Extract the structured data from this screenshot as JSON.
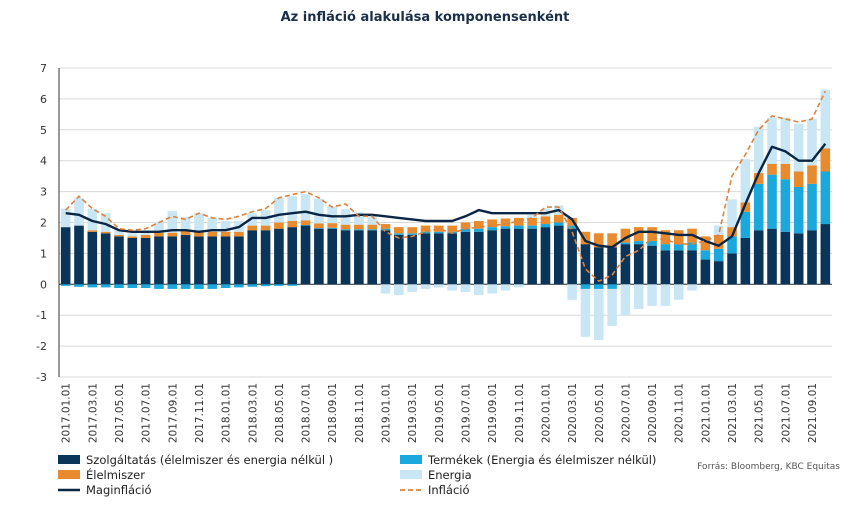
{
  "chart_data": {
    "type": "bar",
    "title": "Az infláció alakulása komponensenként",
    "source": "Forrás: Bloomberg, KBC Equitas",
    "ylim": [
      -3,
      7
    ],
    "yticks": [
      -3,
      -2,
      -1,
      0,
      1,
      2,
      3,
      4,
      5,
      6,
      7
    ],
    "grid": true,
    "legend_position": "bottom",
    "x": [
      "2017.01",
      "2017.02",
      "2017.03",
      "2017.04",
      "2017.05",
      "2017.06",
      "2017.07",
      "2017.08",
      "2017.09",
      "2017.10",
      "2017.11",
      "2017.12",
      "2018.01",
      "2018.02",
      "2018.03",
      "2018.04",
      "2018.05",
      "2018.06",
      "2018.07",
      "2018.08",
      "2018.09",
      "2018.10",
      "2018.11",
      "2018.12",
      "2019.01",
      "2019.02",
      "2019.03",
      "2019.04",
      "2019.05",
      "2019.06",
      "2019.07",
      "2019.08",
      "2019.09",
      "2019.10",
      "2019.11",
      "2019.12",
      "2020.01",
      "2020.02",
      "2020.03",
      "2020.04",
      "2020.05",
      "2020.06",
      "2020.07",
      "2020.08",
      "2020.09",
      "2020.10",
      "2020.11",
      "2020.12",
      "2021.01",
      "2021.02",
      "2021.03",
      "2021.04",
      "2021.05",
      "2021.06",
      "2021.07",
      "2021.08",
      "2021.09",
      "2021.10"
    ],
    "x_tick_labels": [
      "2017.01.01",
      "2017.03.01",
      "2017.05.01",
      "2017.07.01",
      "2017.09.01",
      "2017.11.01",
      "2018.01.01",
      "2018.03.01",
      "2018.05.01",
      "2018.07.01",
      "2018.09.01",
      "2018.11.01",
      "2019.01.01",
      "2019.03.01",
      "2019.05.01",
      "2019.07.01",
      "2019.09.01",
      "2019.11.01",
      "2020.01.01",
      "2020.03.01",
      "2020.05.01",
      "2020.07.01",
      "2020.09.01",
      "2020.11.01",
      "2021.01.01",
      "2021.03.01",
      "2021.05.01",
      "2021.07.01",
      "2021.09.01"
    ],
    "series": [
      {
        "name": "Szolgáltatás (élelmiszer és energia nélkül )",
        "kind": "bar",
        "color": "#0b3558",
        "values": [
          1.85,
          1.9,
          1.7,
          1.65,
          1.55,
          1.5,
          1.5,
          1.55,
          1.55,
          1.6,
          1.55,
          1.55,
          1.55,
          1.55,
          1.75,
          1.75,
          1.8,
          1.85,
          1.9,
          1.8,
          1.8,
          1.75,
          1.75,
          1.75,
          1.75,
          1.6,
          1.6,
          1.65,
          1.65,
          1.65,
          1.7,
          1.7,
          1.75,
          1.8,
          1.8,
          1.8,
          1.85,
          1.9,
          1.8,
          1.3,
          1.2,
          1.2,
          1.3,
          1.3,
          1.25,
          1.1,
          1.1,
          1.1,
          0.8,
          0.75,
          1.0,
          1.5,
          1.75,
          1.8,
          1.7,
          1.65,
          1.75,
          1.95
        ]
      },
      {
        "name": "Termékek (Energia és élelmiszer nélkül)",
        "kind": "bar",
        "color": "#1ba8dd",
        "values": [
          -0.05,
          -0.08,
          -0.1,
          -0.1,
          -0.12,
          -0.12,
          -0.12,
          -0.15,
          -0.15,
          -0.15,
          -0.15,
          -0.15,
          -0.12,
          -0.1,
          -0.08,
          -0.06,
          -0.05,
          -0.05,
          0.02,
          0.02,
          0.03,
          0.03,
          0.03,
          0.03,
          0.05,
          0.05,
          0.05,
          0.05,
          0.05,
          0.05,
          0.1,
          0.1,
          0.1,
          0.08,
          0.1,
          0.1,
          0.1,
          0.1,
          0.1,
          -0.15,
          -0.15,
          -0.15,
          0.05,
          0.1,
          0.15,
          0.2,
          0.2,
          0.25,
          0.3,
          0.4,
          0.55,
          0.85,
          1.5,
          1.75,
          1.7,
          1.5,
          1.5,
          1.7
        ]
      },
      {
        "name": "Élelmiszer",
        "kind": "bar",
        "color": "#e88a2e",
        "values": [
          0.0,
          0.0,
          0.05,
          0.05,
          0.05,
          0.05,
          0.1,
          0.12,
          0.12,
          0.12,
          0.15,
          0.15,
          0.15,
          0.15,
          0.15,
          0.15,
          0.2,
          0.2,
          0.15,
          0.15,
          0.15,
          0.15,
          0.15,
          0.15,
          0.15,
          0.2,
          0.2,
          0.2,
          0.2,
          0.2,
          0.2,
          0.25,
          0.25,
          0.25,
          0.25,
          0.25,
          0.25,
          0.25,
          0.25,
          0.4,
          0.45,
          0.45,
          0.45,
          0.45,
          0.45,
          0.45,
          0.45,
          0.45,
          0.45,
          0.45,
          0.3,
          0.3,
          0.35,
          0.35,
          0.5,
          0.5,
          0.6,
          0.75
        ]
      },
      {
        "name": "Energia",
        "kind": "bar",
        "color": "#c9e6f5",
        "values": [
          0.6,
          0.9,
          0.7,
          0.6,
          0.2,
          0.1,
          0.15,
          0.35,
          0.7,
          0.45,
          0.6,
          0.45,
          0.35,
          0.35,
          0.4,
          0.5,
          0.8,
          0.8,
          0.85,
          0.8,
          0.55,
          0.5,
          0.4,
          0.3,
          -0.3,
          -0.35,
          -0.25,
          -0.15,
          -0.1,
          -0.2,
          -0.25,
          -0.35,
          -0.3,
          -0.2,
          -0.1,
          0.1,
          0.25,
          0.3,
          -0.5,
          -1.55,
          -1.65,
          -1.2,
          -1.0,
          -0.8,
          -0.7,
          -0.7,
          -0.5,
          -0.2,
          0.0,
          0.3,
          0.9,
          1.4,
          1.5,
          1.5,
          1.5,
          1.55,
          1.5,
          1.9
        ]
      },
      {
        "name": "Maginfláció",
        "kind": "line",
        "color": "#0b2645",
        "values": [
          2.3,
          2.25,
          2.05,
          1.95,
          1.75,
          1.7,
          1.7,
          1.7,
          1.75,
          1.75,
          1.7,
          1.75,
          1.75,
          1.85,
          2.15,
          2.15,
          2.25,
          2.3,
          2.35,
          2.25,
          2.2,
          2.2,
          2.25,
          2.25,
          2.2,
          2.15,
          2.1,
          2.05,
          2.05,
          2.05,
          2.2,
          2.4,
          2.3,
          2.3,
          2.3,
          2.3,
          2.3,
          2.4,
          2.1,
          1.4,
          1.25,
          1.2,
          1.5,
          1.7,
          1.7,
          1.65,
          1.6,
          1.6,
          1.4,
          1.25,
          1.55,
          2.6,
          3.6,
          4.45,
          4.3,
          4.0,
          4.0,
          4.55
        ]
      },
      {
        "name": "Infláció",
        "kind": "line",
        "dashed": true,
        "color": "#e0823a",
        "values": [
          2.4,
          2.85,
          2.45,
          2.2,
          1.8,
          1.75,
          1.8,
          2.0,
          2.2,
          2.1,
          2.3,
          2.15,
          2.1,
          2.2,
          2.35,
          2.45,
          2.8,
          2.9,
          3.0,
          2.8,
          2.5,
          2.6,
          2.2,
          2.2,
          1.7,
          1.5,
          1.55,
          1.7,
          1.8,
          1.65,
          1.8,
          1.85,
          1.9,
          1.95,
          2.05,
          2.15,
          2.5,
          2.5,
          1.7,
          0.5,
          0.1,
          0.3,
          0.9,
          1.1,
          1.5,
          1.45,
          1.3,
          1.3,
          1.4,
          1.6,
          3.5,
          4.2,
          5.0,
          5.45,
          5.35,
          5.25,
          5.35,
          6.25
        ]
      }
    ]
  }
}
